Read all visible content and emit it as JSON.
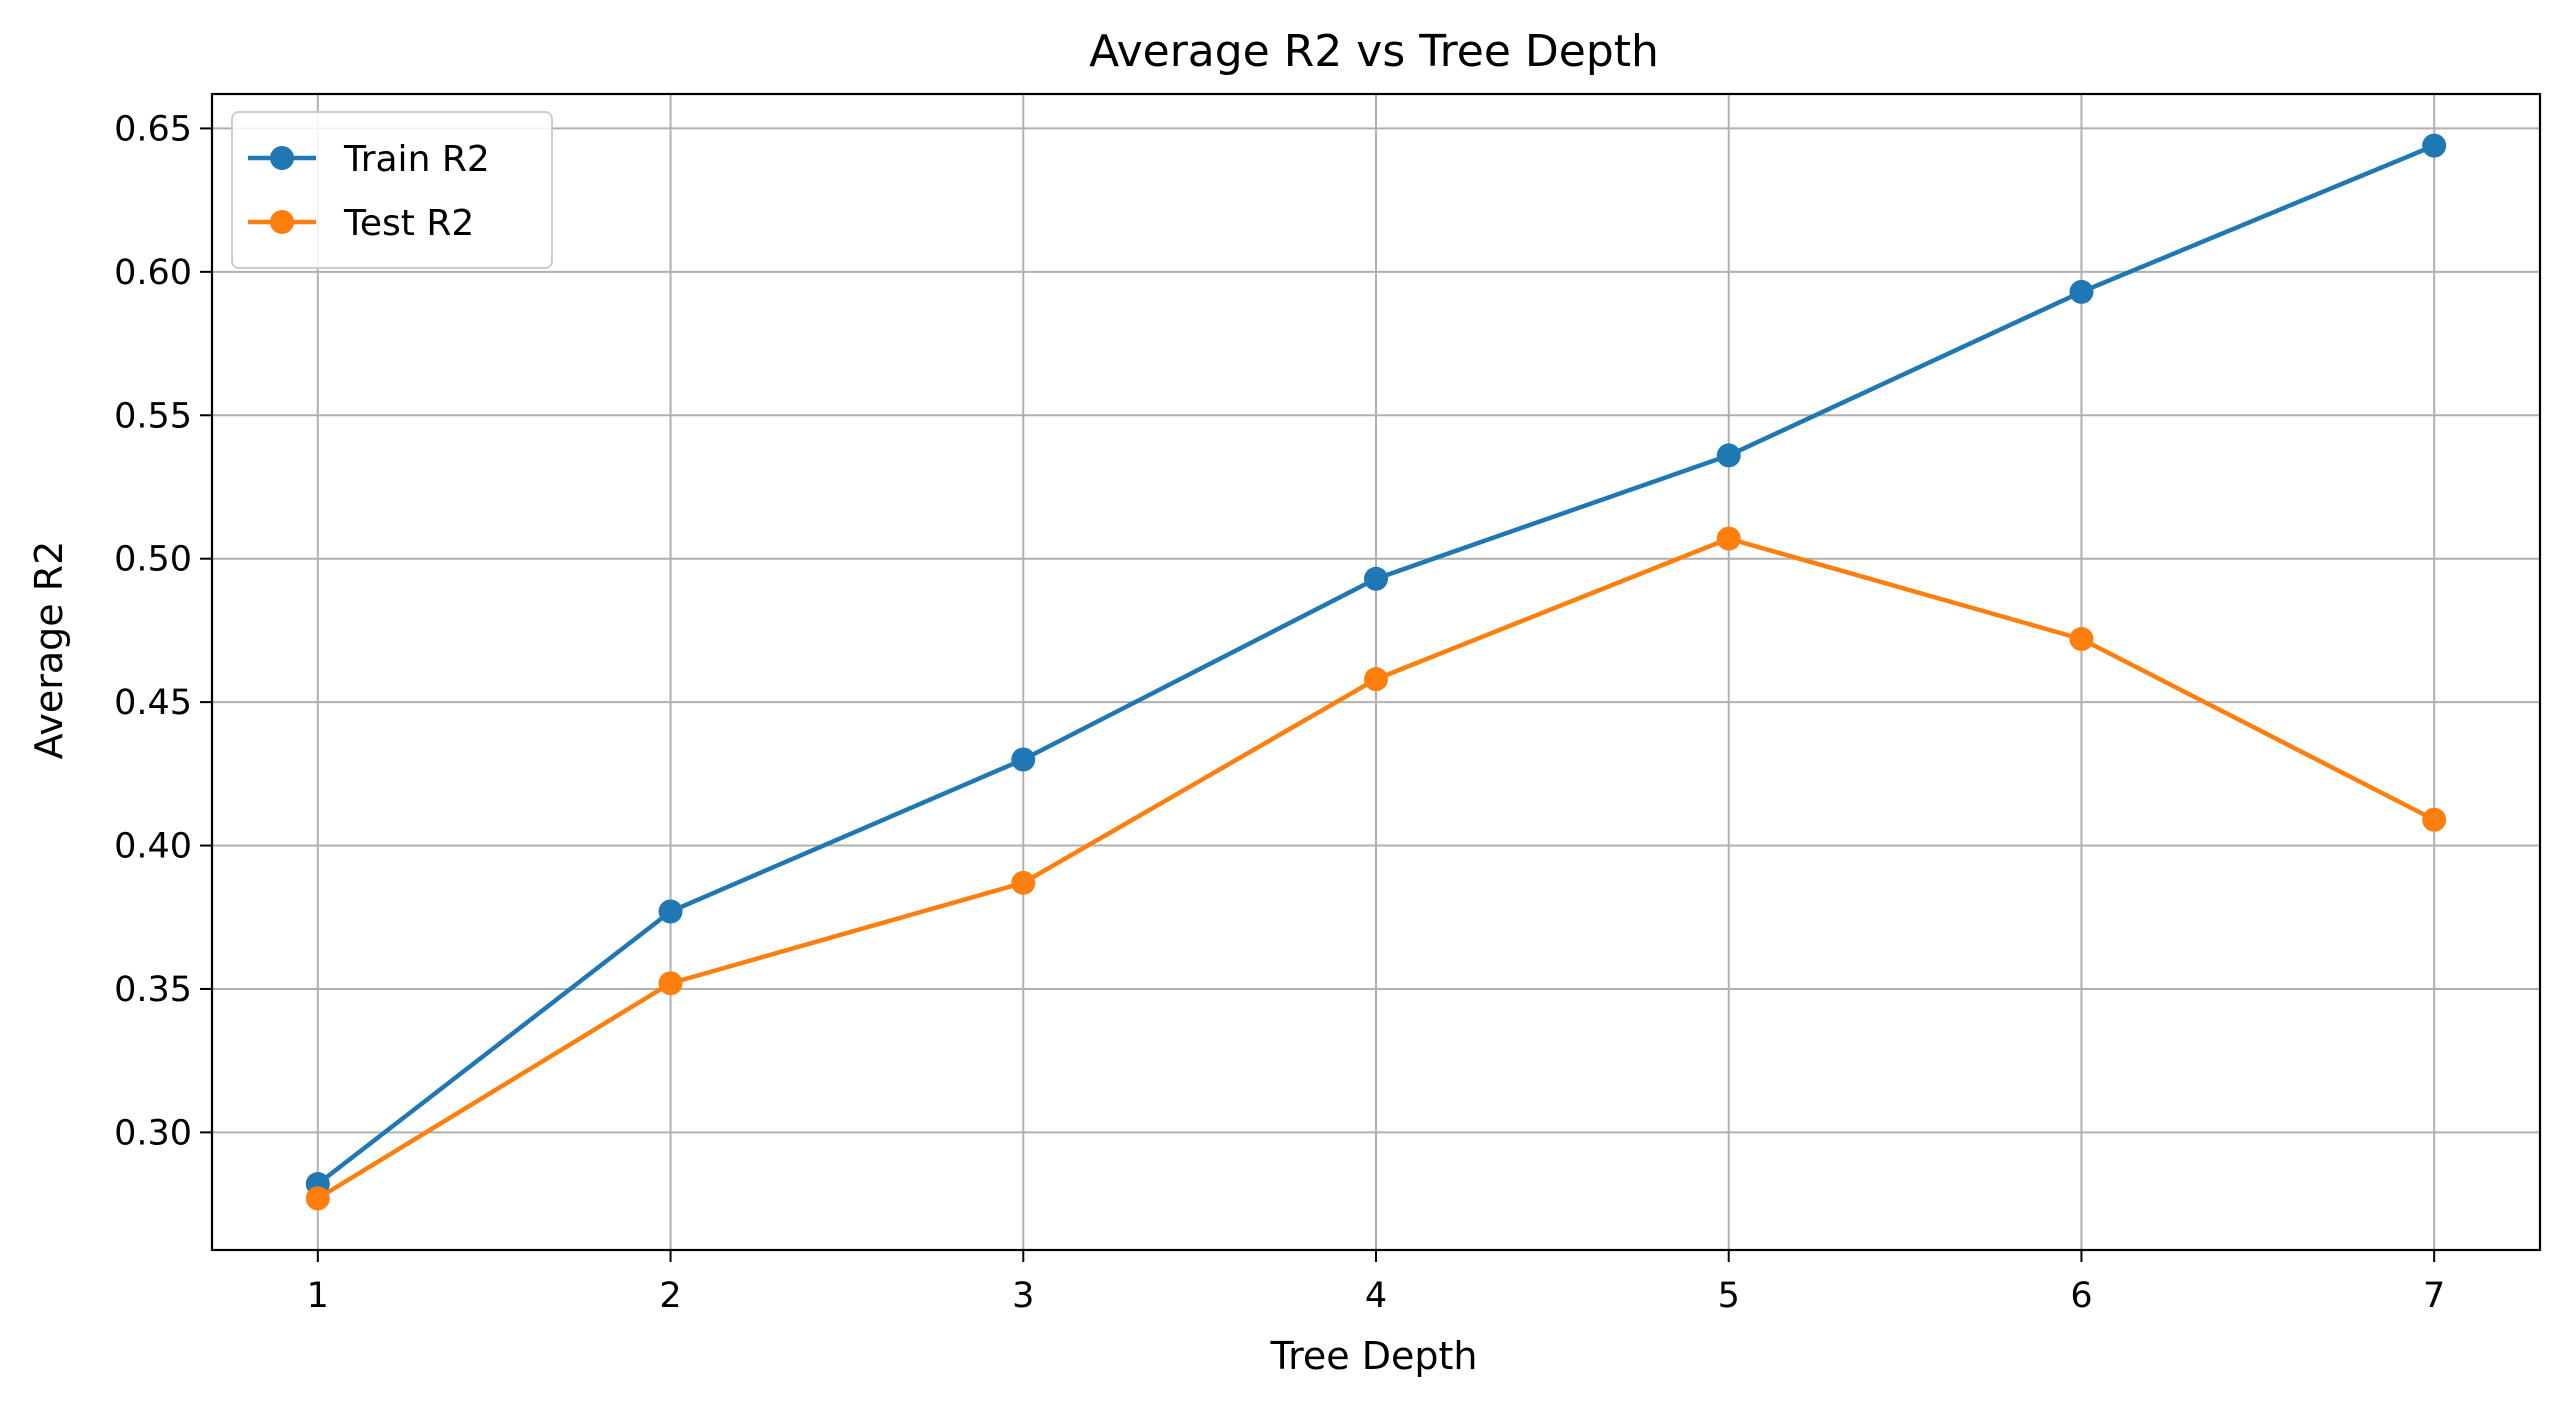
{
  "chart_data": {
    "type": "line",
    "title": "Average R2 vs Tree Depth",
    "xlabel": "Tree Depth",
    "ylabel": "Average R2",
    "x": [
      1,
      2,
      3,
      4,
      5,
      6,
      7
    ],
    "xticks": [
      "1",
      "2",
      "3",
      "4",
      "5",
      "6",
      "7"
    ],
    "yticks": [
      "0.30",
      "0.35",
      "0.40",
      "0.45",
      "0.50",
      "0.55",
      "0.60",
      "0.65"
    ],
    "xlim": [
      0.7,
      7.3
    ],
    "ylim": [
      0.259,
      0.662
    ],
    "grid": true,
    "legend_position": "top-left",
    "series": [
      {
        "name": "Train R2",
        "color": "#1f77b4",
        "values": [
          0.282,
          0.377,
          0.43,
          0.493,
          0.536,
          0.593,
          0.644
        ]
      },
      {
        "name": "Test R2",
        "color": "#ff7f0e",
        "values": [
          0.277,
          0.352,
          0.387,
          0.458,
          0.507,
          0.472,
          0.409
        ]
      }
    ]
  }
}
